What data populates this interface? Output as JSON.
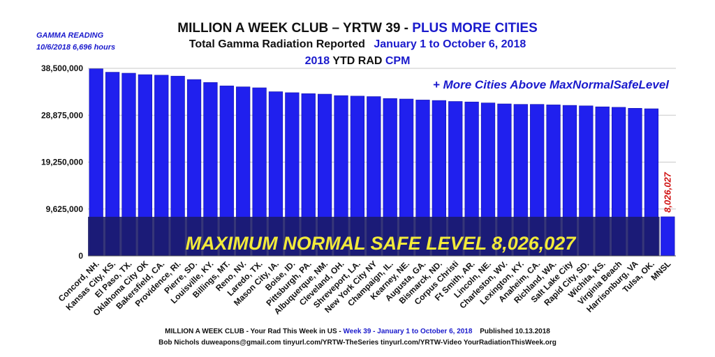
{
  "header": {
    "title_main": "MILLION A WEEK CLUB – YRTW 39 -",
    "title_accent": "PLUS MORE CITIES",
    "subtitle_main": "Total Gamma Radiation Reported",
    "subtitle_accent": "January 1 to October 6, 2018",
    "units_year": "2018",
    "units_mid": "YTD RAD",
    "units_cpm": "CPM"
  },
  "gamma_reading": {
    "label": "GAMMA READING",
    "value": "10/6/2018 6,696 hours"
  },
  "annotations": {
    "more_cities": "+ More Cities Above MaxNormalSafeLevel",
    "safe_level_banner": "MAXIMUM NORMAL SAFE LEVEL 8,026,027",
    "mnsl_value_label": "8,026,027"
  },
  "footer": {
    "line1_main": "MILLION A WEEK CLUB - Your Rad This Week in US -",
    "line1_accent": "Week 39 - January 1 to October 6, 2018",
    "line1_published": "Published 10.13.2018",
    "line2": "Bob Nichols  duweapons@gmail.com tinyurl.com/YRTW-TheSeries  tinyurl.com/YRTW-Video  YourRadiationThisWeek.org"
  },
  "colors": {
    "bar": "#2020ee",
    "bar_stroke": "#1010aa",
    "band": "#1a1a66",
    "banner_text": "#f2ea3a",
    "accent": "#1a1acc",
    "mnsl_label": "#d01010"
  },
  "chart_data": {
    "type": "bar",
    "title": "",
    "xlabel": "",
    "ylabel": "",
    "ylim": [
      0,
      38500000
    ],
    "yticks": [
      0,
      9625000,
      19250000,
      28875000,
      38500000
    ],
    "ytick_labels": [
      "0",
      "9,625,000",
      "19,250,000",
      "28,875,000",
      "38,500,000"
    ],
    "grid": true,
    "safe_level": 8026027,
    "categories": [
      "Concord, NH.",
      "Kansas City, KS.",
      "El Paso, TX.",
      "Oklahoma City OK",
      "Bakersfield, CA.",
      "Providence, RI.",
      "Pierre, SD.",
      "Louisville, KY.",
      "Billings, MT.",
      "Reno, NV.",
      "Laredo, TX.",
      "Mason City, IA.",
      "Boise, ID.",
      "Pittsburgh, PA.",
      "Albuquerque, NM.",
      "Cleveland, OH.",
      "Shreveport, LA.",
      "New York City NY",
      "Champaign, IL.",
      "Kearney, NE.",
      "Augusta, GA.",
      "Bismarck, ND.",
      "Corpus Christi",
      "Ft Smith, AR.",
      "Lincoln, NE.",
      "Charleston, WV.",
      "Lexington, KY.",
      "Anaheim, CA.",
      "Richland, WA.",
      "Salt Lake City",
      "Rapid City, SD.",
      "Wichita, KS.",
      "Virginia Beach",
      "Harrisonburg, VA",
      "Tulsa, OK.",
      "MNSL"
    ],
    "values": [
      38400000,
      37700000,
      37500000,
      37200000,
      37100000,
      36900000,
      36200000,
      35600000,
      34900000,
      34700000,
      34500000,
      33700000,
      33500000,
      33300000,
      33200000,
      32900000,
      32800000,
      32700000,
      32300000,
      32200000,
      32000000,
      31900000,
      31700000,
      31600000,
      31400000,
      31200000,
      31100000,
      31100000,
      31000000,
      30900000,
      30800000,
      30600000,
      30500000,
      30300000,
      30200000,
      8026027
    ]
  }
}
